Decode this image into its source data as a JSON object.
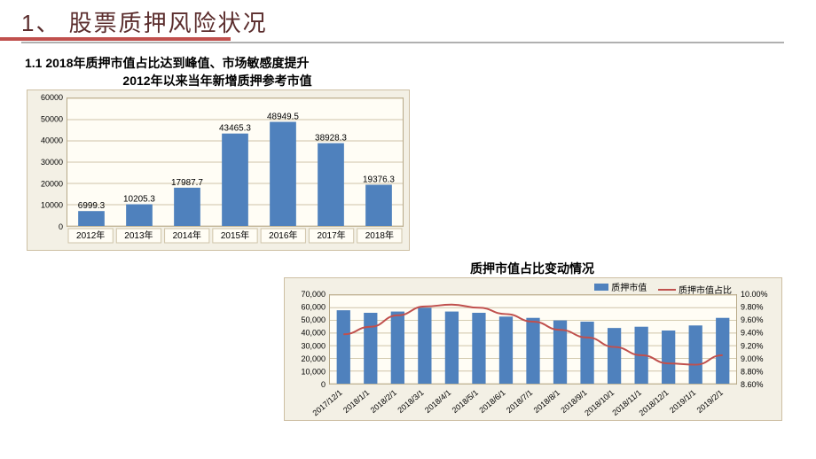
{
  "title": "1、 股票质押风险状况",
  "subtitle": "1.1 2018年质押市值占比达到峰值、市场敏感度提升",
  "chart1": {
    "type": "bar",
    "title": "2012年以来当年新增质押参考市值",
    "categories": [
      "2012年",
      "2013年",
      "2014年",
      "2015年",
      "2016年",
      "2017年",
      "2018年"
    ],
    "values": [
      6999.3,
      10205.3,
      17987.7,
      43465.3,
      48949.5,
      38928.3,
      19376.3
    ],
    "ylim": [
      0,
      60000
    ],
    "ytick_step": 10000,
    "bar_color": "#4f81bd",
    "background_color": "#fffdf5",
    "panel_color": "#f3f0e5",
    "grid_color": "#cfc4a9",
    "label_fontsize": 10
  },
  "chart2": {
    "type": "bar+line",
    "title": "质押市值占比变动情况",
    "categories": [
      "2017/12/1",
      "2018/1/1",
      "2018/2/1",
      "2018/3/1",
      "2018/4/1",
      "2018/5/1",
      "2018/6/1",
      "2018/7/1",
      "2018/8/1",
      "2018/9/1",
      "2018/10/1",
      "2018/11/1",
      "2018/12/1",
      "2019/1/1",
      "2019/2/1"
    ],
    "bar_values": [
      58000,
      56000,
      57000,
      60000,
      57000,
      56000,
      53000,
      52000,
      50000,
      49000,
      44000,
      45000,
      42000,
      46000,
      52000
    ],
    "line_values": [
      9.38,
      9.5,
      9.68,
      9.82,
      9.85,
      9.8,
      9.7,
      9.58,
      9.45,
      9.33,
      9.18,
      9.05,
      8.92,
      8.9,
      9.05
    ],
    "y1_lim": [
      0,
      70000
    ],
    "y1_tick_step": 10000,
    "y2_lim": [
      8.6,
      10.0
    ],
    "y2_tick_step": 0.2,
    "bar_color": "#4f81bd",
    "line_color": "#c0504d",
    "background_color": "#fffdf5",
    "panel_color": "#f3f0e5",
    "grid_color": "#cfc4a9",
    "legend": {
      "bar": "质押市值",
      "line": "质押市值占比"
    }
  }
}
